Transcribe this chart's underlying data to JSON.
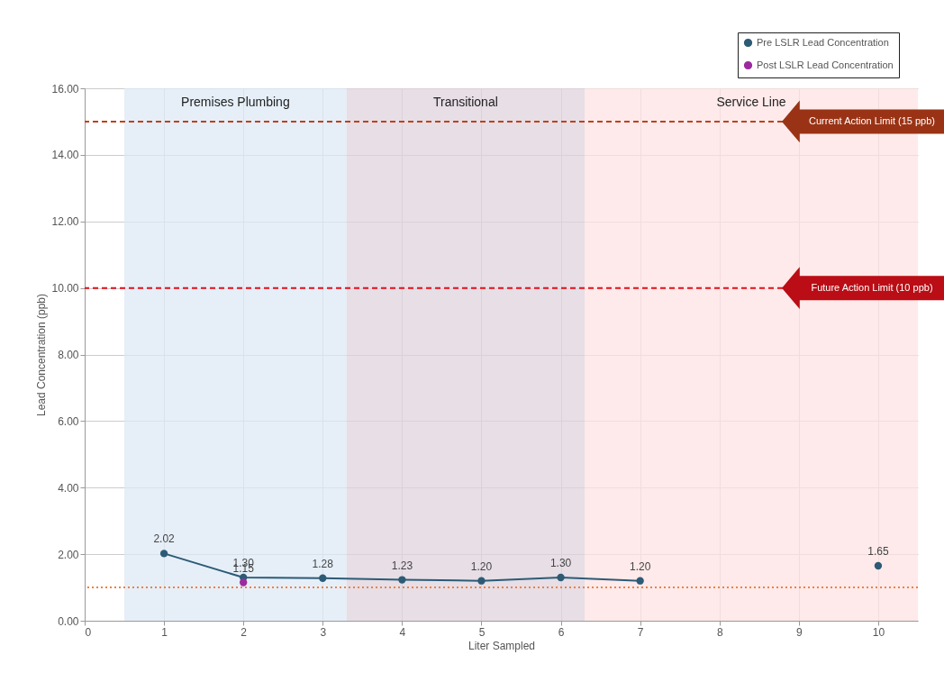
{
  "chart_data": {
    "type": "line",
    "xlabel": "Liter Sampled",
    "ylabel": "Lead Concentration (ppb)",
    "x": [
      1,
      2,
      3,
      4,
      5,
      6,
      7,
      8,
      9,
      10
    ],
    "series": [
      {
        "name": "Pre LSLR Lead Concentration",
        "color": "#2d5b75",
        "values": [
          2.02,
          1.3,
          1.28,
          1.23,
          1.2,
          1.3,
          1.2,
          null,
          null,
          1.65
        ],
        "value_labels": [
          "2.02",
          "1.30",
          "1.28",
          "1.23",
          "1.20",
          "1.30",
          "1.20",
          null,
          null,
          "1.65"
        ]
      },
      {
        "name": "Post LSLR Lead Concentration",
        "color": "#9c2a9f",
        "values": [
          null,
          1.15,
          null,
          null,
          null,
          null,
          null,
          null,
          null,
          null
        ],
        "value_labels": [
          null,
          "1.15",
          null,
          null,
          null,
          null,
          null,
          null,
          null,
          null
        ]
      }
    ],
    "xlim": [
      0,
      10.5
    ],
    "xticks": [
      {
        "value": 0,
        "label": "0"
      },
      {
        "value": 1,
        "label": "1"
      },
      {
        "value": 2,
        "label": "2"
      },
      {
        "value": 3,
        "label": "3"
      },
      {
        "value": 4,
        "label": "4"
      },
      {
        "value": 5,
        "label": "5"
      },
      {
        "value": 6,
        "label": "6"
      },
      {
        "value": 7,
        "label": "7"
      },
      {
        "value": 8,
        "label": "8"
      },
      {
        "value": 9,
        "label": "9"
      },
      {
        "value": 10,
        "label": "10"
      }
    ],
    "ylim": [
      0,
      16
    ],
    "yticks": [
      {
        "value": 0,
        "label": "0.00"
      },
      {
        "value": 2,
        "label": "2.00"
      },
      {
        "value": 4,
        "label": "4.00"
      },
      {
        "value": 6,
        "label": "6.00"
      },
      {
        "value": 8,
        "label": "8.00"
      },
      {
        "value": 10,
        "label": "10.00"
      },
      {
        "value": 12,
        "label": "12.00"
      },
      {
        "value": 14,
        "label": "14.00"
      },
      {
        "value": 16,
        "label": "16.00"
      }
    ],
    "bands": [
      {
        "axis": "x",
        "from": 0.5,
        "to": 3.3,
        "label": "Premises Plumbing",
        "color": "#deeaf5"
      },
      {
        "axis": "x",
        "from": 3.3,
        "to": 6.3,
        "label": "Transitional",
        "color": "#dfd3de"
      },
      {
        "axis": "x",
        "from": 6.3,
        "to": 10.5,
        "label": "Service Line",
        "color": "#fde3e3"
      }
    ],
    "ref_lines": [
      {
        "axis": "y",
        "value": 15,
        "label": "Current Action Limit (15 ppb)",
        "color": "#c0401a",
        "line_style": "dashed"
      },
      {
        "axis": "y",
        "value": 10,
        "label": "Future Action Limit (10 ppb)",
        "color": "#e8101a",
        "line_style": "dashed"
      },
      {
        "axis": "y",
        "value": 1,
        "color": "#f08040",
        "line_style": "dotted"
      }
    ],
    "grid": true,
    "legend": "top right",
    "marker": "circle",
    "line_style": "solid"
  }
}
